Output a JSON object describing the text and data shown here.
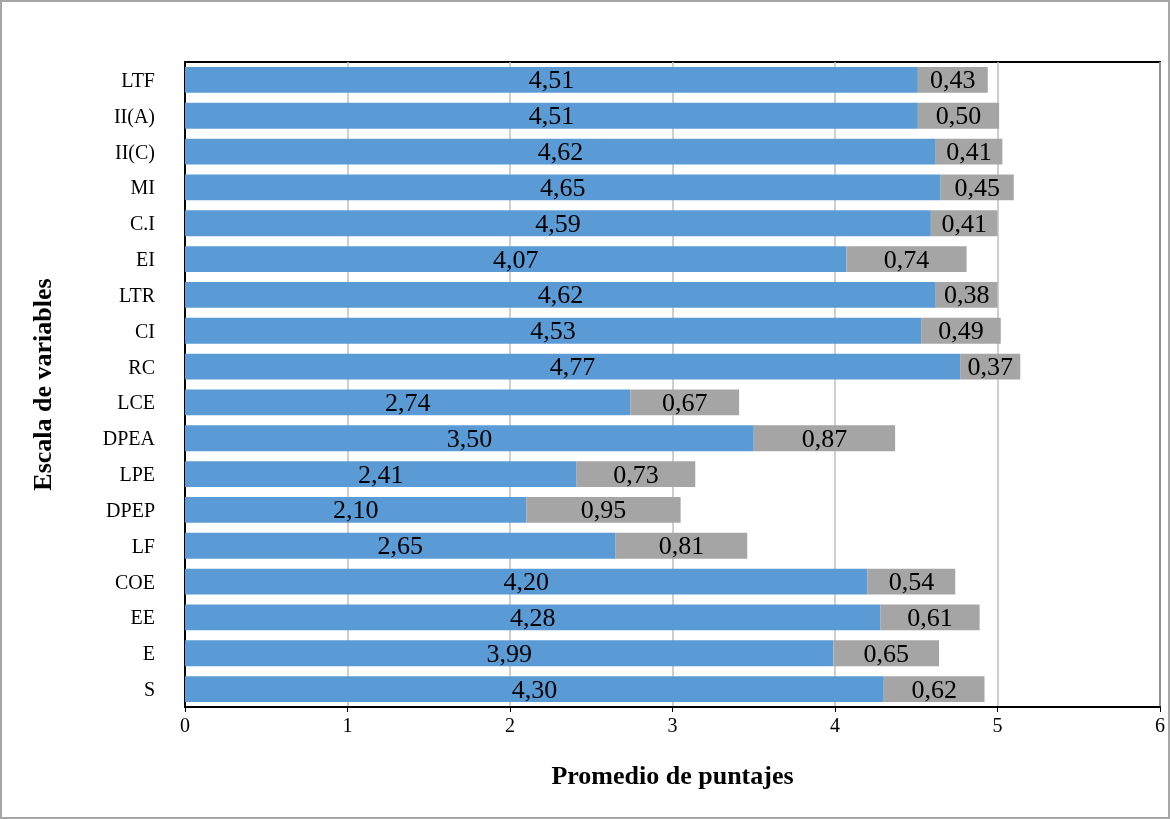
{
  "chart_data": {
    "type": "bar",
    "orientation": "horizontal",
    "stacked": true,
    "xlabel": "Promedio de puntajes",
    "ylabel": "Escala de variables",
    "categories": [
      "LTF",
      "II(A)",
      "II(C)",
      "MI",
      "C.I",
      "EI",
      "LTR",
      "CI",
      "RC",
      "LCE",
      "DPEA",
      "LPE",
      "DPEP",
      "LF",
      "COE",
      "EE",
      "E",
      "S"
    ],
    "series": [
      {
        "color": "#5b9bd5",
        "values": [
          4.51,
          4.51,
          4.62,
          4.65,
          4.59,
          4.07,
          4.62,
          4.53,
          4.77,
          2.74,
          3.5,
          2.41,
          2.1,
          2.65,
          4.2,
          4.28,
          3.99,
          4.3
        ],
        "value_labels": [
          "4,51",
          "4,51",
          "4,62",
          "4,65",
          "4,59",
          "4,07",
          "4,62",
          "4,53",
          "4,77",
          "2,74",
          "3,50",
          "2,41",
          "2,10",
          "2,65",
          "4,20",
          "4,28",
          "3,99",
          "4,30"
        ]
      },
      {
        "color": "#a5a5a5",
        "values": [
          0.43,
          0.5,
          0.41,
          0.45,
          0.41,
          0.74,
          0.38,
          0.49,
          0.37,
          0.67,
          0.87,
          0.73,
          0.95,
          0.81,
          0.54,
          0.61,
          0.65,
          0.62
        ],
        "value_labels": [
          "0,43",
          "0,50",
          "0,41",
          "0,45",
          "0,41",
          "0,74",
          "0,38",
          "0,49",
          "0,37",
          "0,67",
          "0,87",
          "0,73",
          "0,95",
          "0,81",
          "0,54",
          "0,61",
          "0,65",
          "0,62"
        ]
      }
    ],
    "xlim": [
      0,
      6
    ],
    "xticks": [
      0,
      1,
      2,
      3,
      4,
      5,
      6
    ],
    "grid": "x"
  }
}
